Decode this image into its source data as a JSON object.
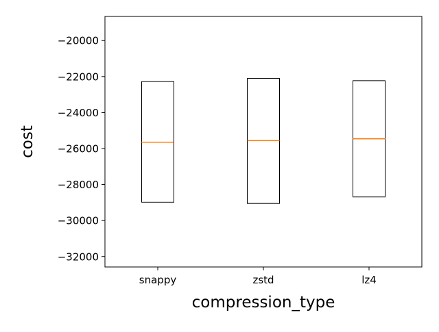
{
  "chart_data": {
    "type": "box",
    "title": "",
    "xlabel": "compression_type",
    "ylabel": "cost",
    "categories": [
      "snappy",
      "zstd",
      "lz4"
    ],
    "boxes": [
      {
        "category": "snappy",
        "q1": -28980,
        "median": -25650,
        "q3": -22280
      },
      {
        "category": "zstd",
        "q1": -29050,
        "median": -25560,
        "q3": -22100
      },
      {
        "category": "lz4",
        "q1": -28690,
        "median": -25460,
        "q3": -22230
      }
    ],
    "ylim": [
      -32580,
      -18660
    ],
    "yticks": [
      -32000,
      -30000,
      -28000,
      -26000,
      -24000,
      -22000,
      -20000
    ],
    "ytick_labels": [
      "−32000",
      "−30000",
      "−28000",
      "−26000",
      "−24000",
      "−22000",
      "−20000"
    ],
    "grid": false,
    "colors": {
      "box_edge": "#000000",
      "median": "#ff7f0e",
      "axes": "#000000",
      "background": "#ffffff"
    }
  }
}
